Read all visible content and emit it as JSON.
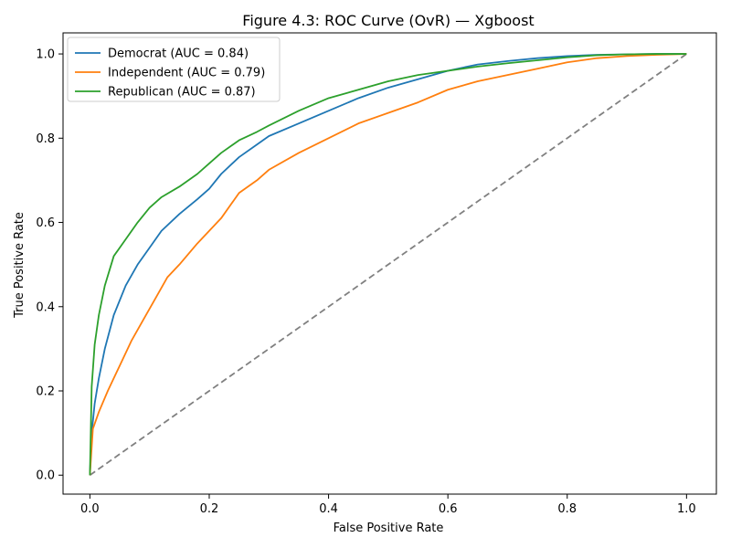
{
  "chart_data": {
    "type": "line",
    "title": "Figure 4.3: ROC Curve (OvR) — Xgboost",
    "xlabel": "False Positive Rate",
    "ylabel": "True Positive Rate",
    "xlim": [
      -0.045,
      1.05
    ],
    "ylim": [
      -0.045,
      1.05
    ],
    "xticks": [
      "0.0",
      "0.2",
      "0.4",
      "0.6",
      "0.8",
      "1.0"
    ],
    "yticks": [
      "0.0",
      "0.2",
      "0.4",
      "0.6",
      "0.8",
      "1.0"
    ],
    "grid": false,
    "legend_position": "top-left",
    "series": [
      {
        "name": "Democrat (AUC = 0.84)",
        "color": "#1f77b4",
        "x": [
          0,
          0.003,
          0.008,
          0.015,
          0.025,
          0.04,
          0.06,
          0.08,
          0.1,
          0.12,
          0.15,
          0.18,
          0.2,
          0.22,
          0.25,
          0.28,
          0.3,
          0.35,
          0.4,
          0.45,
          0.5,
          0.55,
          0.6,
          0.65,
          0.7,
          0.75,
          0.8,
          0.85,
          0.9,
          0.95,
          1.0
        ],
        "y": [
          0,
          0.1,
          0.17,
          0.23,
          0.3,
          0.38,
          0.45,
          0.5,
          0.54,
          0.58,
          0.62,
          0.655,
          0.68,
          0.715,
          0.755,
          0.785,
          0.805,
          0.835,
          0.865,
          0.895,
          0.92,
          0.94,
          0.96,
          0.975,
          0.983,
          0.99,
          0.995,
          0.998,
          0.999,
          1.0,
          1.0
        ]
      },
      {
        "name": "Independent (AUC = 0.79)",
        "color": "#ff7f0e",
        "x": [
          0,
          0.005,
          0.015,
          0.03,
          0.05,
          0.07,
          0.09,
          0.11,
          0.13,
          0.15,
          0.18,
          0.2,
          0.22,
          0.25,
          0.28,
          0.3,
          0.35,
          0.4,
          0.45,
          0.5,
          0.55,
          0.6,
          0.65,
          0.7,
          0.75,
          0.8,
          0.85,
          0.9,
          0.95,
          1.0
        ],
        "y": [
          0,
          0.11,
          0.15,
          0.2,
          0.26,
          0.32,
          0.37,
          0.42,
          0.47,
          0.5,
          0.55,
          0.58,
          0.61,
          0.67,
          0.7,
          0.725,
          0.765,
          0.8,
          0.835,
          0.86,
          0.885,
          0.915,
          0.935,
          0.95,
          0.965,
          0.98,
          0.99,
          0.995,
          0.998,
          1.0
        ]
      },
      {
        "name": "Republican (AUC = 0.87)",
        "color": "#2ca02c",
        "x": [
          0,
          0.003,
          0.008,
          0.015,
          0.025,
          0.04,
          0.06,
          0.08,
          0.1,
          0.12,
          0.15,
          0.18,
          0.2,
          0.22,
          0.25,
          0.28,
          0.3,
          0.35,
          0.4,
          0.45,
          0.5,
          0.55,
          0.6,
          0.65,
          0.7,
          0.75,
          0.8,
          0.85,
          0.9,
          0.95,
          1.0
        ],
        "y": [
          0,
          0.21,
          0.31,
          0.38,
          0.45,
          0.52,
          0.56,
          0.6,
          0.635,
          0.66,
          0.685,
          0.715,
          0.74,
          0.765,
          0.795,
          0.815,
          0.83,
          0.865,
          0.895,
          0.915,
          0.935,
          0.95,
          0.96,
          0.97,
          0.978,
          0.985,
          0.992,
          0.997,
          0.999,
          1.0,
          1.0
        ]
      }
    ],
    "reference_line": {
      "style": "dashed",
      "color": "#808080",
      "x": [
        0,
        1
      ],
      "y": [
        0,
        1
      ]
    }
  }
}
